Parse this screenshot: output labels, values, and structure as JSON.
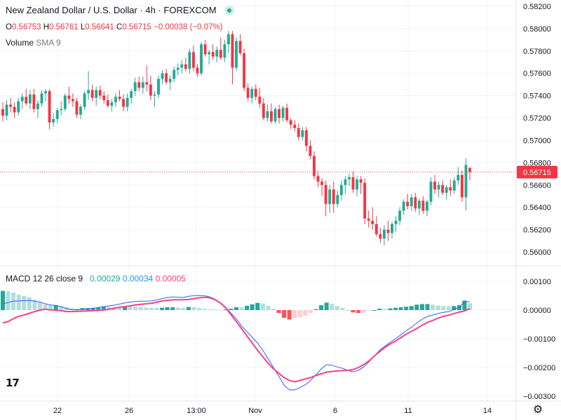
{
  "header": {
    "title": "New Zealand Dollar / U.S. Dollar · 4h · FOREXCOM",
    "ohlc": [
      {
        "label": "O",
        "value": "0.56753"
      },
      {
        "label": "H",
        "value": "0.56761"
      },
      {
        "label": "L",
        "value": "0.56641"
      },
      {
        "label": "C",
        "value": "0.56715"
      }
    ],
    "change": "−0.00038 (−0.07%)",
    "volume_label": "Volume",
    "volume_sma": "SMA 9",
    "macd_label": "MACD",
    "macd_params": "12 26 close 9",
    "macd_values": [
      "0.00029",
      "0.00034",
      "0.00005"
    ]
  },
  "logo_text": "17",
  "colors": {
    "up": "#22ab94",
    "down": "#f23645",
    "hist_up_strong": "#26a69a",
    "hist_up_weak": "#b2dfdb",
    "hist_down_strong": "#ff5252",
    "hist_down_weak": "#ffcdd2",
    "macd_line": "#2962ff",
    "signal_line": "#ff4081",
    "price_badge": "#f23645",
    "grid": "#f0f3fa"
  },
  "chart_data": [
    {
      "type": "candlestick",
      "title": "New Zealand Dollar / U.S. Dollar · 4h · FOREXCOM",
      "x_tick_labels": [
        "22",
        "26",
        "13:00",
        "Nov",
        "6",
        "11",
        "14"
      ],
      "y_tick_labels": [
        "0.58200",
        "0.58000",
        "0.57800",
        "0.57600",
        "0.57400",
        "0.57200",
        "0.57000",
        "0.56800",
        "0.56600",
        "0.56400",
        "0.56200",
        "0.56000"
      ],
      "ylim": [
        0.5595,
        0.5821
      ],
      "last_price": "0.56715",
      "last_price_value": 0.56715,
      "grid": true,
      "candles": [
        [
          0.5728,
          0.5734,
          0.5717,
          0.5722
        ],
        [
          0.5722,
          0.5736,
          0.5718,
          0.5732
        ],
        [
          0.5732,
          0.5738,
          0.5725,
          0.573
        ],
        [
          0.573,
          0.5734,
          0.572,
          0.5725
        ],
        [
          0.5725,
          0.5738,
          0.5722,
          0.5735
        ],
        [
          0.5735,
          0.5742,
          0.5728,
          0.5739
        ],
        [
          0.5739,
          0.5746,
          0.5731,
          0.5733
        ],
        [
          0.5733,
          0.5745,
          0.5728,
          0.5741
        ],
        [
          0.5741,
          0.5746,
          0.5725,
          0.5728
        ],
        [
          0.5728,
          0.5736,
          0.572,
          0.5733
        ],
        [
          0.5733,
          0.5745,
          0.573,
          0.5742
        ],
        [
          0.5742,
          0.5746,
          0.5735,
          0.5744
        ],
        [
          0.5744,
          0.5746,
          0.571,
          0.5716
        ],
        [
          0.5716,
          0.5724,
          0.5712,
          0.5719
        ],
        [
          0.5719,
          0.5729,
          0.5715,
          0.5727
        ],
        [
          0.5727,
          0.5735,
          0.5722,
          0.5728
        ],
        [
          0.5728,
          0.5742,
          0.5726,
          0.574
        ],
        [
          0.574,
          0.5748,
          0.5733,
          0.5737
        ],
        [
          0.5737,
          0.5742,
          0.573,
          0.5735
        ],
        [
          0.5735,
          0.5738,
          0.572,
          0.5723
        ],
        [
          0.5723,
          0.5732,
          0.5719,
          0.573
        ],
        [
          0.573,
          0.5744,
          0.5727,
          0.5742
        ],
        [
          0.5742,
          0.5762,
          0.5736,
          0.5745
        ],
        [
          0.5745,
          0.575,
          0.5735,
          0.5738
        ],
        [
          0.5738,
          0.5748,
          0.5731,
          0.5745
        ],
        [
          0.5745,
          0.5749,
          0.5737,
          0.574
        ],
        [
          0.574,
          0.5744,
          0.5733,
          0.5736
        ],
        [
          0.5736,
          0.5741,
          0.5729,
          0.5731
        ],
        [
          0.5731,
          0.5737,
          0.5726,
          0.5734
        ],
        [
          0.5734,
          0.5742,
          0.573,
          0.5739
        ],
        [
          0.5739,
          0.5745,
          0.5735,
          0.5737
        ],
        [
          0.5737,
          0.5741,
          0.5726,
          0.573
        ],
        [
          0.573,
          0.5742,
          0.5726,
          0.5738
        ],
        [
          0.5738,
          0.5746,
          0.5733,
          0.5744
        ],
        [
          0.5744,
          0.5756,
          0.574,
          0.5752
        ],
        [
          0.5752,
          0.5757,
          0.5744,
          0.5747
        ],
        [
          0.5747,
          0.5757,
          0.5742,
          0.5752
        ],
        [
          0.5752,
          0.5767,
          0.5744,
          0.575
        ],
        [
          0.575,
          0.5758,
          0.5736,
          0.574
        ],
        [
          0.574,
          0.5744,
          0.573,
          0.5741
        ],
        [
          0.5741,
          0.5758,
          0.5738,
          0.5755
        ],
        [
          0.5755,
          0.5763,
          0.575,
          0.576
        ],
        [
          0.576,
          0.5764,
          0.575,
          0.5752
        ],
        [
          0.5752,
          0.5758,
          0.5745,
          0.5755
        ],
        [
          0.5755,
          0.5766,
          0.5752,
          0.5763
        ],
        [
          0.5763,
          0.5769,
          0.5758,
          0.5765
        ],
        [
          0.5765,
          0.5772,
          0.576,
          0.5768
        ],
        [
          0.5768,
          0.5774,
          0.5762,
          0.5764
        ],
        [
          0.5764,
          0.5782,
          0.576,
          0.5779
        ],
        [
          0.5779,
          0.5785,
          0.5762,
          0.5765
        ],
        [
          0.5765,
          0.5768,
          0.5757,
          0.576
        ],
        [
          0.576,
          0.5788,
          0.5758,
          0.5786
        ],
        [
          0.5786,
          0.579,
          0.5775,
          0.5777
        ],
        [
          0.5777,
          0.5781,
          0.5768,
          0.5779
        ],
        [
          0.5779,
          0.5786,
          0.5772,
          0.5775
        ],
        [
          0.5775,
          0.5784,
          0.577,
          0.5781
        ],
        [
          0.5781,
          0.5792,
          0.5772,
          0.5774
        ],
        [
          0.5774,
          0.579,
          0.577,
          0.5786
        ],
        [
          0.5786,
          0.5798,
          0.5778,
          0.5795
        ],
        [
          0.5795,
          0.5798,
          0.575,
          0.5765
        ],
        [
          0.5765,
          0.5792,
          0.5762,
          0.5789
        ],
        [
          0.5789,
          0.5795,
          0.5776,
          0.5778
        ],
        [
          0.5778,
          0.5782,
          0.5744,
          0.5747
        ],
        [
          0.5747,
          0.5751,
          0.5735,
          0.5738
        ],
        [
          0.5738,
          0.5748,
          0.5733,
          0.5746
        ],
        [
          0.5746,
          0.575,
          0.5736,
          0.5739
        ],
        [
          0.5739,
          0.5747,
          0.5729,
          0.5733
        ],
        [
          0.5733,
          0.5738,
          0.5718,
          0.572
        ],
        [
          0.572,
          0.5732,
          0.5717,
          0.5726
        ],
        [
          0.5726,
          0.5733,
          0.5715,
          0.5717
        ],
        [
          0.5717,
          0.573,
          0.5715,
          0.5728
        ],
        [
          0.5728,
          0.5732,
          0.5715,
          0.572
        ],
        [
          0.572,
          0.5731,
          0.5717,
          0.5729
        ],
        [
          0.5729,
          0.5733,
          0.5716,
          0.5718
        ],
        [
          0.5718,
          0.572,
          0.571,
          0.5714
        ],
        [
          0.5714,
          0.5718,
          0.5708,
          0.5711
        ],
        [
          0.5711,
          0.5715,
          0.57,
          0.5703
        ],
        [
          0.5703,
          0.5712,
          0.57,
          0.5709
        ],
        [
          0.5709,
          0.5712,
          0.569,
          0.5695
        ],
        [
          0.5695,
          0.57,
          0.5683,
          0.5686
        ],
        [
          0.5686,
          0.569,
          0.5665,
          0.5668
        ],
        [
          0.5668,
          0.5673,
          0.5658,
          0.5663
        ],
        [
          0.5663,
          0.5666,
          0.565,
          0.566
        ],
        [
          0.566,
          0.5664,
          0.5632,
          0.5643
        ],
        [
          0.5643,
          0.566,
          0.5635,
          0.5656
        ],
        [
          0.5656,
          0.5663,
          0.5635,
          0.5643
        ],
        [
          0.5643,
          0.5655,
          0.564,
          0.5651
        ],
        [
          0.5651,
          0.5664,
          0.5646,
          0.566
        ],
        [
          0.566,
          0.5668,
          0.5652,
          0.5665
        ],
        [
          0.5665,
          0.567,
          0.5659,
          0.5667
        ],
        [
          0.5667,
          0.5672,
          0.5653,
          0.5656
        ],
        [
          0.5656,
          0.5668,
          0.565,
          0.5665
        ],
        [
          0.5665,
          0.5668,
          0.5652,
          0.5662
        ],
        [
          0.5662,
          0.5666,
          0.5625,
          0.563
        ],
        [
          0.563,
          0.5637,
          0.5622,
          0.5628
        ],
        [
          0.5628,
          0.564,
          0.562,
          0.5625
        ],
        [
          0.5625,
          0.5632,
          0.5614,
          0.5616
        ],
        [
          0.5616,
          0.5622,
          0.5608,
          0.5612
        ],
        [
          0.5612,
          0.5624,
          0.5606,
          0.562
        ],
        [
          0.562,
          0.5628,
          0.561,
          0.5617
        ],
        [
          0.5617,
          0.5627,
          0.5612,
          0.5625
        ],
        [
          0.5625,
          0.5632,
          0.5618,
          0.5628
        ],
        [
          0.5628,
          0.564,
          0.5624,
          0.5637
        ],
        [
          0.5637,
          0.5647,
          0.5633,
          0.5645
        ],
        [
          0.5645,
          0.5652,
          0.5638,
          0.5641
        ],
        [
          0.5641,
          0.5652,
          0.5637,
          0.5649
        ],
        [
          0.5649,
          0.5653,
          0.5636,
          0.5639
        ],
        [
          0.5639,
          0.5648,
          0.5633,
          0.5646
        ],
        [
          0.5646,
          0.565,
          0.5634,
          0.5637
        ],
        [
          0.5637,
          0.5647,
          0.5632,
          0.5645
        ],
        [
          0.5645,
          0.5667,
          0.5642,
          0.5663
        ],
        [
          0.5663,
          0.5669,
          0.5652,
          0.5656
        ],
        [
          0.5656,
          0.5663,
          0.5649,
          0.566
        ],
        [
          0.566,
          0.5664,
          0.5651,
          0.5653
        ],
        [
          0.5653,
          0.566,
          0.5647,
          0.5658
        ],
        [
          0.5658,
          0.5665,
          0.565,
          0.5655
        ],
        [
          0.5655,
          0.5667,
          0.5652,
          0.5664
        ],
        [
          0.5664,
          0.5676,
          0.566,
          0.5669
        ],
        [
          0.5669,
          0.5673,
          0.5645,
          0.5649
        ],
        [
          0.5649,
          0.5684,
          0.5637,
          0.5678
        ],
        [
          0.56753,
          0.56761,
          0.56641,
          0.56715
        ]
      ]
    },
    {
      "type": "bar",
      "title": "MACD 12 26 close 9",
      "y_tick_labels": [
        "0.00100",
        "0.00000",
        "-0.00100",
        "-0.00200",
        "-0.00300"
      ],
      "ylim": [
        -0.0032,
        0.0012
      ],
      "series": [
        {
          "name": "MACD",
          "values": [
            0.00022,
            0.00026,
            0.00031,
            0.00032,
            0.00033,
            0.00034,
            0.00031,
            0.00028,
            0.00022,
            0.00018,
            0.00016,
            0.00012,
            5e-05,
            2e-05,
            1e-05,
            3e-05,
            4e-05,
            6e-05,
            9e-05,
            0.00012,
            0.00015,
            0.00017,
            0.00021,
            0.00025,
            0.00028,
            0.0003,
            0.00031,
            0.00031,
            0.00032,
            0.00035,
            0.0004,
            0.00044,
            0.00046,
            0.00045,
            0.00044,
            0.00048,
            0.0005,
            0.00051,
            0.0005,
            0.00046,
            0.00038,
            0.00026,
            0.0001,
            -0.00011,
            -0.0003,
            -0.00055,
            -0.00075,
            -0.00095,
            -0.00115,
            -0.0014,
            -0.0017,
            -0.002,
            -0.0023,
            -0.00262,
            -0.00278,
            -0.00278,
            -0.0027,
            -0.0026,
            -0.00245,
            -0.00225,
            -0.00205,
            -0.0019,
            -0.00192,
            -0.00198,
            -0.00203,
            -0.0021,
            -0.00215,
            -0.0021,
            -0.00198,
            -0.0018,
            -0.0016,
            -0.0014,
            -0.00126,
            -0.00112,
            -0.001,
            -0.00086,
            -0.00072,
            -0.0006,
            -0.00045,
            -0.00032,
            -0.00022,
            -0.00017,
            -0.00012,
            -8e-05,
            -5e-05,
            2e-05,
            0.0001,
            0.0003,
            0.00029
          ]
        },
        {
          "name": "Signal",
          "values": [
            -0.00045,
            -0.0004,
            -0.0003,
            -0.00022,
            -0.00017,
            -0.00011,
            -5e-05,
            0.0,
            3e-05,
            1e-05,
            -1e-05,
            -2e-05,
            -5e-05,
            -5e-05,
            -4e-05,
            -4e-05,
            -3e-05,
            -2e-05,
            -1e-05,
            0.0,
            3e-05,
            6e-05,
            0.0001,
            0.00012,
            0.00015,
            0.00018,
            0.0002,
            0.00022,
            0.00024,
            0.00027,
            0.00032,
            0.00034,
            0.00036,
            0.00036,
            0.00036,
            0.00037,
            0.0004,
            0.00043,
            0.00045,
            0.00043,
            0.00036,
            0.00025,
            8e-05,
            -0.00016,
            -0.0004,
            -0.00065,
            -0.0009,
            -0.00115,
            -0.0014,
            -0.00163,
            -0.00185,
            -0.00205,
            -0.0022,
            -0.00235,
            -0.00245,
            -0.0025,
            -0.00245,
            -0.0024,
            -0.00235,
            -0.00228,
            -0.00222,
            -0.00216,
            -0.00214,
            -0.00212,
            -0.00211,
            -0.0021,
            -0.00207,
            -0.002,
            -0.0019,
            -0.00177,
            -0.0016,
            -0.00145,
            -0.0013,
            -0.00118,
            -0.00108,
            -0.00096,
            -0.00084,
            -0.00074,
            -0.00064,
            -0.00053,
            -0.00043,
            -0.00036,
            -0.00028,
            -0.00022,
            -0.00018,
            -0.00012,
            -7e-05,
            -3e-05,
            5e-05
          ]
        }
      ]
    }
  ]
}
